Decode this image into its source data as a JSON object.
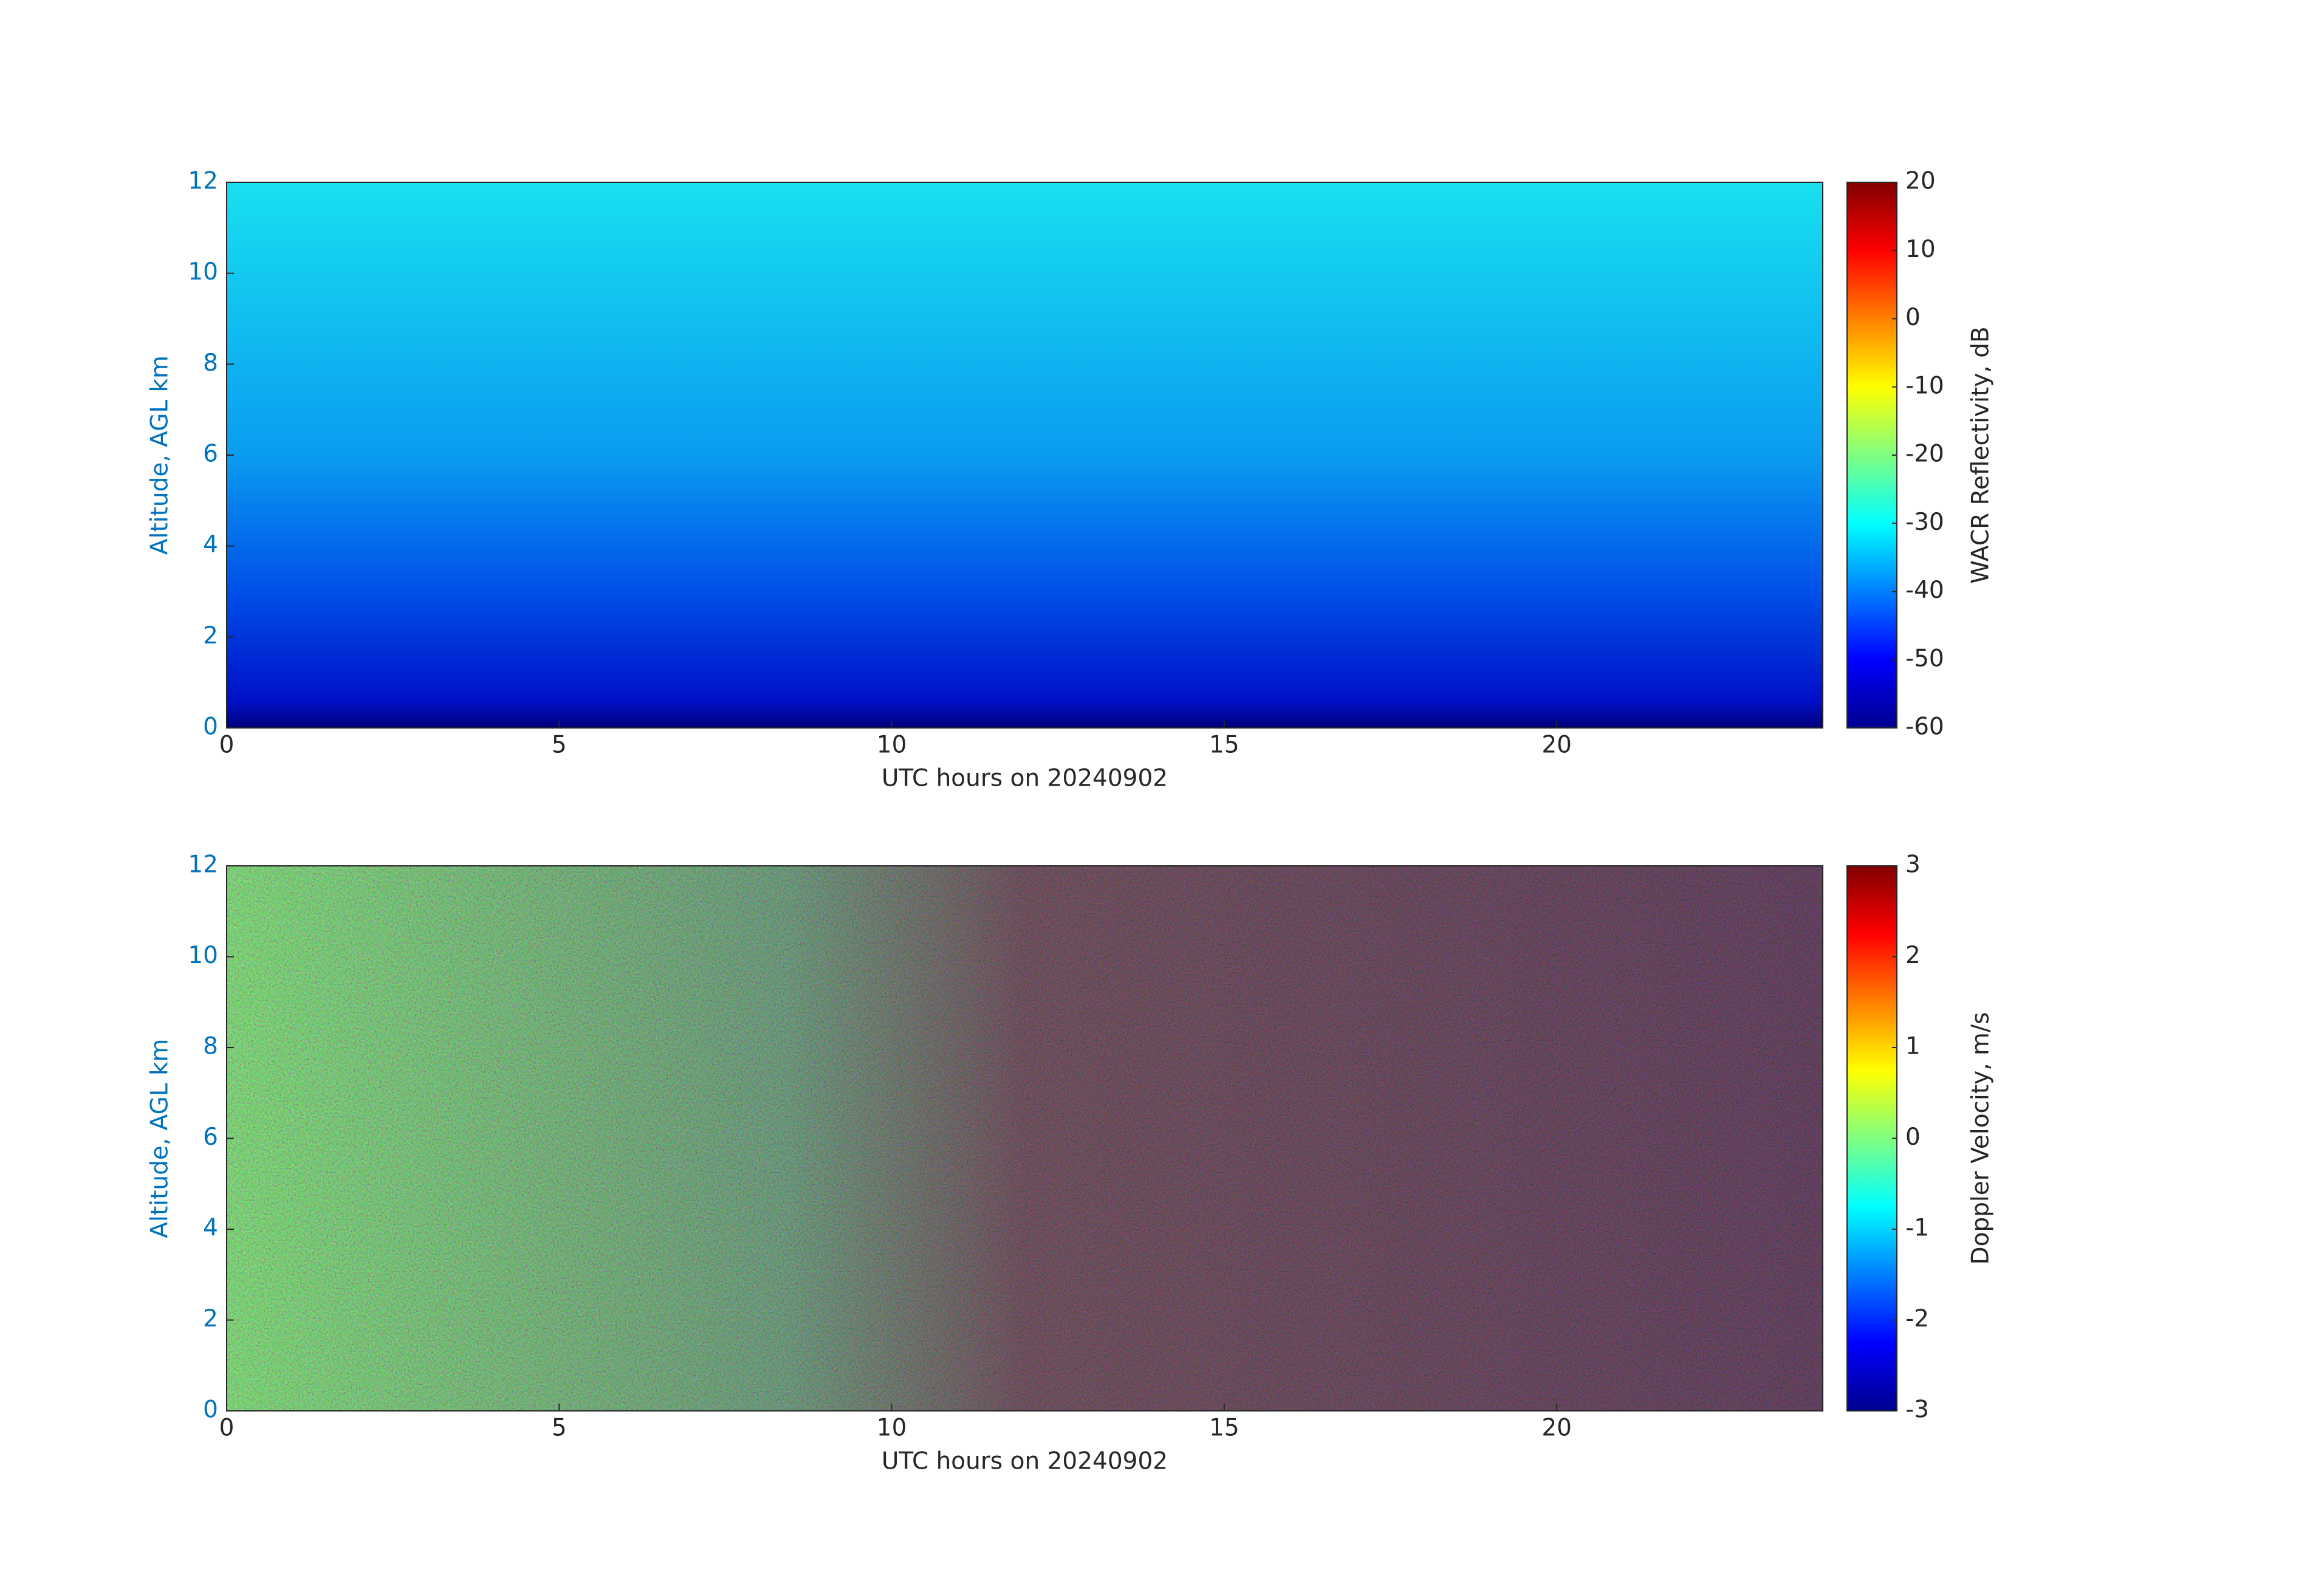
{
  "chart_data": [
    {
      "type": "heatmap",
      "colormap": "jet",
      "xlabel": "UTC hours on 20240902",
      "ylabel": "Altitude, AGL km",
      "colorbar_label": "WACR Reflectivity, dB",
      "xlim": [
        0,
        24
      ],
      "xticks": [
        0,
        5,
        10,
        15,
        20
      ],
      "ylim": [
        0,
        12
      ],
      "yticks": [
        0,
        2,
        4,
        6,
        8,
        10,
        12
      ],
      "clim": [
        -60,
        20
      ],
      "cticks": [
        -60,
        -50,
        -40,
        -30,
        -20,
        -10,
        0,
        10,
        20
      ]
    },
    {
      "type": "heatmap",
      "colormap": "jet",
      "xlabel": "UTC hours on 20240902",
      "ylabel": "Altitude, AGL km",
      "colorbar_label": "Doppler Velocity, m/s",
      "xlim": [
        0,
        24
      ],
      "xticks": [
        0,
        5,
        10,
        15,
        20
      ],
      "ylim": [
        0,
        12
      ],
      "yticks": [
        0,
        2,
        4,
        6,
        8,
        10,
        12
      ],
      "clim": [
        -3,
        3
      ],
      "cticks": [
        -3,
        -2,
        -1,
        0,
        1,
        2,
        3
      ]
    }
  ]
}
